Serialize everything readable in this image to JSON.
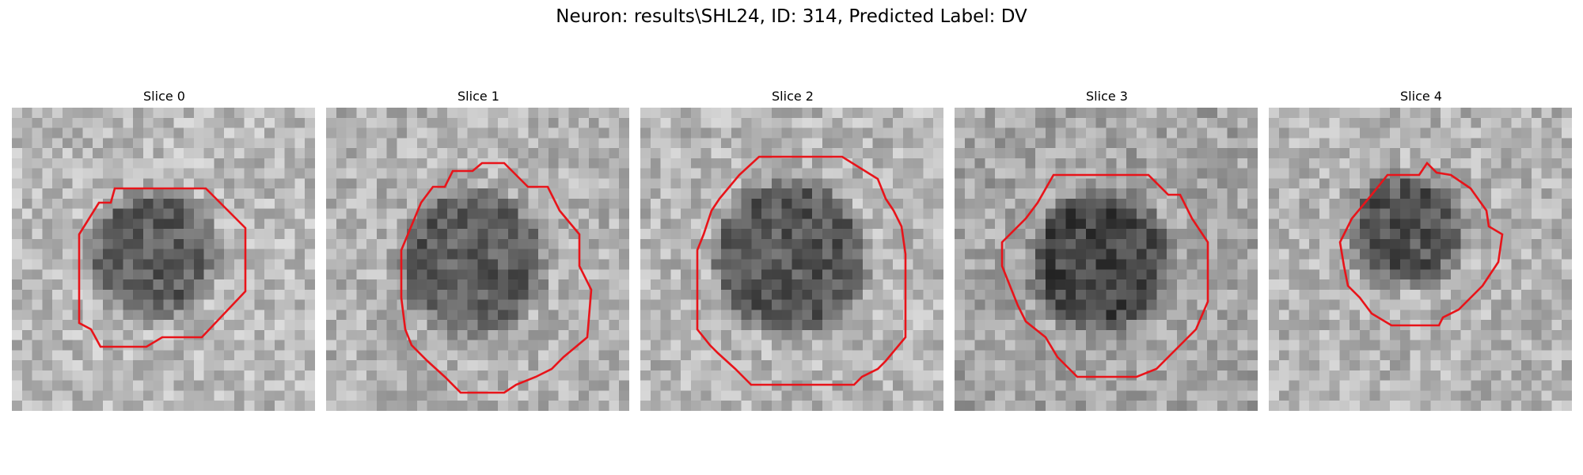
{
  "figure": {
    "title": "Neuron: results\\SHL24, ID: 314, Predicted Label: DV",
    "contour_color": "#e8141a"
  },
  "panels": [
    {
      "title": "Slice 0"
    },
    {
      "title": "Slice 1"
    },
    {
      "title": "Slice 2"
    },
    {
      "title": "Slice 3"
    },
    {
      "title": "Slice 4"
    }
  ]
}
